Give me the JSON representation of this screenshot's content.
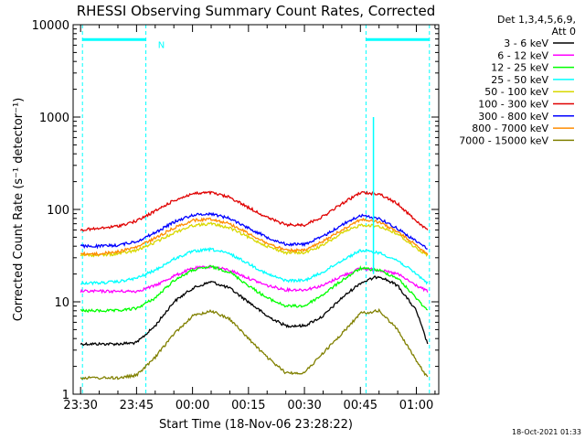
{
  "chart_data": {
    "type": "line",
    "title": "RHESSI Observing Summary Count Rates, Corrected",
    "xlabel": "Start Time (18-Nov-06 23:28:22)",
    "ylabel": "Corrected Count Rate (s⁻¹ detector⁻¹)",
    "yscale": "log",
    "ylim": [
      1,
      10000
    ],
    "xlim_minutes_after_2330": [
      -2,
      96
    ],
    "ytick_values": [
      1,
      10,
      100,
      1000,
      10000
    ],
    "ytick_labels": [
      "1",
      "10",
      "100",
      "1000",
      "10000"
    ],
    "xtick_minutes_after_2330": [
      0,
      15,
      30,
      45,
      60,
      75,
      90
    ],
    "xtick_labels": [
      "23:30",
      "23:45",
      "00:00",
      "00:15",
      "00:30",
      "00:45",
      "01:00"
    ],
    "legend_header": [
      "Det 1,3,4,5,6,9,",
      "Att 0"
    ],
    "legend_placement": "right",
    "timestamp": "18-Oct-2021 01:33",
    "annotations": [
      {
        "text": "N",
        "x_minute": 19.5,
        "y": 7000,
        "color": "#00ffff"
      }
    ],
    "night_intervals": [
      {
        "start_minute": 0.5,
        "end_minute": 17.5
      },
      {
        "start_minute": 76.5,
        "end_minute": 93.5
      }
    ],
    "flare_spike": {
      "x_minute": 78.5,
      "peak": 1000,
      "color": "#00ffff"
    },
    "series": [
      {
        "name": "3 - 6 keV",
        "color": "#000000",
        "x_minute": [
          0,
          5,
          10,
          15,
          20,
          25,
          30,
          35,
          40,
          45,
          50,
          55,
          60,
          65,
          70,
          75,
          80,
          85,
          90,
          93
        ],
        "values": [
          3.5,
          3.5,
          3.5,
          3.6,
          5.5,
          10,
          14,
          16.5,
          14,
          10,
          7,
          5.5,
          5.5,
          7,
          11,
          16,
          19,
          15,
          8,
          3.5
        ]
      },
      {
        "name": "6 - 12 keV",
        "color": "#ff00ff",
        "x_minute": [
          0,
          5,
          10,
          15,
          20,
          25,
          30,
          35,
          40,
          45,
          50,
          55,
          60,
          65,
          70,
          75,
          80,
          85,
          90,
          93
        ],
        "values": [
          13,
          13,
          13,
          13,
          15,
          19,
          23,
          24,
          22,
          18,
          15,
          13.5,
          13.5,
          15,
          19,
          23,
          22,
          20,
          15,
          13
        ]
      },
      {
        "name": "12 - 25 keV",
        "color": "#00ff00",
        "x_minute": [
          0,
          5,
          10,
          15,
          20,
          25,
          30,
          35,
          40,
          45,
          50,
          55,
          60,
          65,
          70,
          75,
          80,
          85,
          90,
          93
        ],
        "values": [
          8,
          8,
          8,
          8.5,
          11,
          17,
          22,
          24,
          21,
          15,
          11,
          9,
          9,
          12,
          17,
          23,
          22,
          18,
          11,
          8
        ]
      },
      {
        "name": "25 - 50 keV",
        "color": "#00ffff",
        "x_minute": [
          0,
          5,
          10,
          15,
          20,
          25,
          30,
          35,
          40,
          45,
          50,
          55,
          60,
          65,
          70,
          75,
          80,
          85,
          90,
          93
        ],
        "values": [
          16,
          16,
          16.5,
          18,
          22,
          29,
          35,
          37,
          33,
          26,
          20,
          17,
          17,
          21,
          28,
          36,
          34,
          28,
          20,
          16
        ]
      },
      {
        "name": "50 - 100 keV",
        "color": "#d8d800",
        "x_minute": [
          0,
          5,
          10,
          15,
          20,
          25,
          30,
          35,
          40,
          45,
          50,
          55,
          60,
          65,
          70,
          75,
          80,
          85,
          90,
          93
        ],
        "values": [
          32,
          32,
          33,
          36,
          44,
          56,
          67,
          70,
          63,
          50,
          40,
          34,
          34,
          41,
          55,
          68,
          66,
          54,
          38,
          32
        ]
      },
      {
        "name": "100 - 300 keV",
        "color": "#e00000",
        "x_minute": [
          0,
          5,
          10,
          15,
          20,
          25,
          30,
          35,
          40,
          45,
          50,
          55,
          60,
          65,
          70,
          75,
          80,
          85,
          90,
          93
        ],
        "values": [
          60,
          62,
          66,
          75,
          96,
          125,
          148,
          152,
          135,
          105,
          82,
          68,
          68,
          84,
          115,
          152,
          148,
          115,
          75,
          60
        ]
      },
      {
        "name": "300 - 800 keV",
        "color": "#0000ff",
        "x_minute": [
          0,
          5,
          10,
          15,
          20,
          25,
          30,
          35,
          40,
          45,
          50,
          55,
          60,
          65,
          70,
          75,
          80,
          85,
          90,
          93
        ],
        "values": [
          40,
          40,
          41,
          45,
          56,
          73,
          87,
          90,
          80,
          63,
          50,
          42,
          42,
          51,
          68,
          86,
          80,
          62,
          45,
          38
        ]
      },
      {
        "name": "800 - 7000 keV",
        "color": "#ff8c00",
        "x_minute": [
          0,
          5,
          10,
          15,
          20,
          25,
          30,
          35,
          40,
          45,
          50,
          55,
          60,
          65,
          70,
          75,
          80,
          85,
          90,
          93
        ],
        "values": [
          33,
          33,
          35,
          39,
          49,
          63,
          76,
          79,
          70,
          55,
          43,
          36,
          36,
          45,
          60,
          78,
          73,
          57,
          41,
          33
        ]
      },
      {
        "name": "7000 - 15000 keV",
        "color": "#808000",
        "x_minute": [
          0,
          5,
          10,
          15,
          20,
          25,
          30,
          35,
          40,
          45,
          50,
          55,
          60,
          65,
          70,
          75,
          80,
          85,
          90,
          93
        ],
        "values": [
          1.5,
          1.5,
          1.5,
          1.6,
          2.5,
          4.5,
          7,
          8,
          6.5,
          4,
          2.5,
          1.7,
          1.7,
          2.8,
          4.5,
          7.5,
          8,
          5,
          2.3,
          1.5
        ]
      }
    ]
  }
}
